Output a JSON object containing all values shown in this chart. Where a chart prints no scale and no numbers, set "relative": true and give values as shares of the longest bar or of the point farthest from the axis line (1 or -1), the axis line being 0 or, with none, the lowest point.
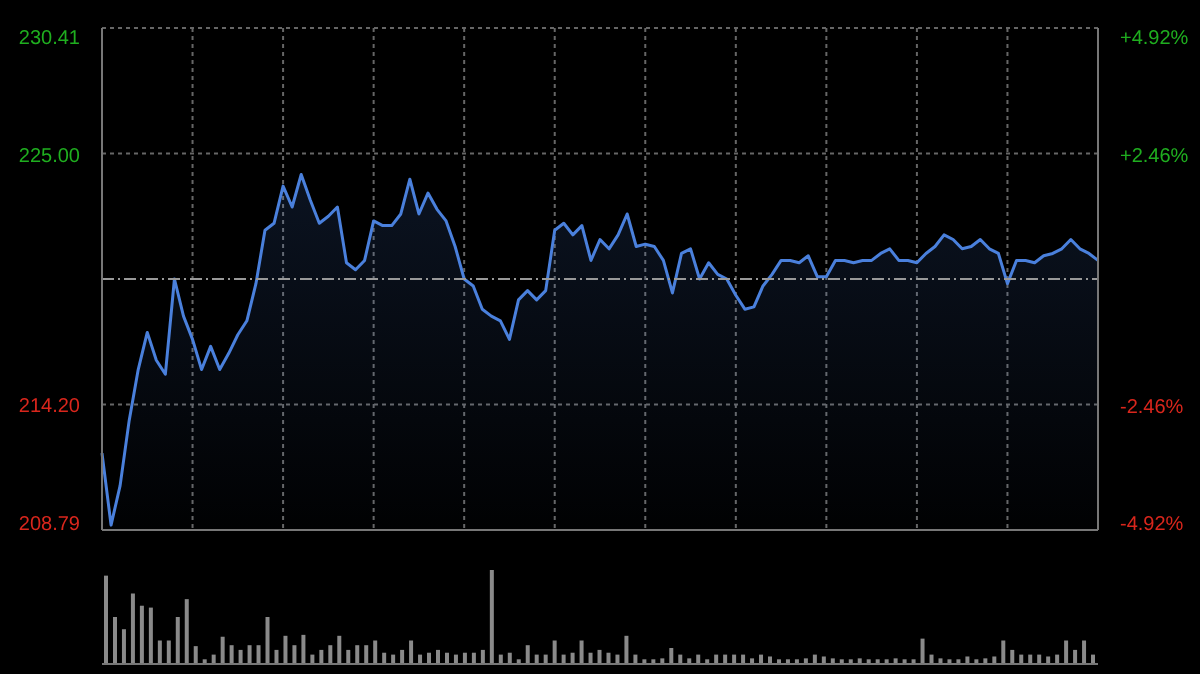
{
  "chart_data": [
    {
      "type": "area",
      "categories": [
        null,
        null,
        null,
        null,
        null,
        null,
        null,
        null,
        null,
        null,
        null,
        null,
        null,
        null,
        null,
        null,
        null,
        null,
        null,
        null,
        null,
        null,
        null,
        null,
        null,
        null,
        null,
        null,
        null,
        null,
        null,
        null,
        null,
        null,
        null,
        null,
        null,
        null,
        null,
        null,
        null,
        null,
        null,
        null,
        null,
        null,
        null,
        null,
        null,
        null,
        null,
        null,
        null,
        null,
        null,
        null,
        null,
        null,
        null,
        null,
        null,
        null,
        null,
        null,
        null,
        null,
        null,
        null,
        null,
        null,
        null,
        null,
        null,
        null,
        null,
        null,
        null,
        null,
        null,
        null,
        null,
        null,
        null,
        null,
        null,
        null,
        null,
        null,
        null,
        null,
        null,
        null,
        null,
        null,
        null,
        null,
        null,
        null,
        null,
        null,
        null,
        null,
        null,
        null,
        null,
        null,
        null,
        null,
        null,
        null,
        null
      ],
      "series": [
        {
          "color": "#4a80dc",
          "values": [
            212.1,
            209.0,
            210.7,
            213.5,
            215.7,
            217.3,
            216.1,
            215.5,
            219.6,
            218.0,
            217.0,
            215.7,
            216.7,
            215.7,
            216.4,
            217.2,
            217.8,
            219.4,
            221.7,
            222.0,
            223.6,
            222.7,
            224.1,
            223.0,
            222.0,
            222.3,
            222.7,
            220.3,
            220.0,
            220.4,
            222.1,
            221.9,
            221.9,
            222.4,
            223.9,
            222.4,
            223.3,
            222.6,
            222.1,
            221.0,
            219.6,
            219.3,
            218.3,
            218.0,
            217.8,
            217.0,
            218.7,
            219.1,
            218.7,
            219.1,
            221.7,
            222.0,
            221.5,
            221.9,
            220.4,
            221.3,
            220.9,
            221.5,
            222.4,
            221.0,
            221.1,
            221.0,
            220.4,
            219.0,
            220.7,
            220.9,
            219.6,
            220.3,
            219.8,
            219.6,
            218.9,
            218.3,
            218.4,
            219.3,
            219.8,
            220.4,
            220.4,
            220.3,
            220.6,
            219.7,
            219.7,
            220.4,
            220.4,
            220.3,
            220.4,
            220.4,
            220.7,
            220.9,
            220.4,
            220.4,
            220.3,
            220.7,
            221.0,
            221.5,
            221.3,
            220.9,
            221.0,
            221.3,
            220.9,
            220.7,
            219.4,
            220.4,
            220.4,
            220.3,
            220.6,
            220.7,
            220.9,
            221.3,
            220.9,
            220.7,
            220.4
          ]
        }
      ],
      "ylim": [
        208.79,
        230.41
      ],
      "yticks": [
        208.79,
        {
          "value": 214.2,
          "label": "214.20"
        },
        {
          "value": 225.0,
          "label": "225.00"
        },
        230.41
      ],
      "y2lim": [
        -4.92,
        4.92
      ],
      "y2ticks": [
        {
          "value": -4.92,
          "label": "-4.92%"
        },
        {
          "value": -2.46,
          "label": "-2.46%"
        },
        {
          "value": 2.46,
          "label": "+2.46%"
        },
        {
          "value": 4.92,
          "label": "+4.92%"
        }
      ],
      "ref_lines": [
        {
          "axis": "y",
          "value": 219.6
        }
      ],
      "grid": true,
      "legend": false,
      "marker": "none",
      "line_style": "solid",
      "tick_labels": "y"
    },
    {
      "type": "bar",
      "relative": true,
      "categories": [
        null,
        null,
        null,
        null,
        null,
        null,
        null,
        null,
        null,
        null,
        null,
        null,
        null,
        null,
        null,
        null,
        null,
        null,
        null,
        null,
        null,
        null,
        null,
        null,
        null,
        null,
        null,
        null,
        null,
        null,
        null,
        null,
        null,
        null,
        null,
        null,
        null,
        null,
        null,
        null,
        null,
        null,
        null,
        null,
        null,
        null,
        null,
        null,
        null,
        null,
        null,
        null,
        null,
        null,
        null,
        null,
        null,
        null,
        null,
        null,
        null,
        null,
        null,
        null,
        null,
        null,
        null,
        null,
        null,
        null,
        null,
        null,
        null,
        null,
        null,
        null,
        null,
        null,
        null,
        null,
        null,
        null,
        null,
        null,
        null,
        null,
        null,
        null,
        null,
        null,
        null,
        null,
        null,
        null,
        null,
        null,
        null,
        null,
        null,
        null,
        null,
        null,
        null,
        null,
        null,
        null,
        null,
        null,
        null,
        null,
        null
      ],
      "series": [
        {
          "color": "#8a8a8a",
          "values": [
            0.94,
            0.5,
            0.37,
            0.75,
            0.62,
            0.6,
            0.25,
            0.25,
            0.5,
            0.69,
            0.19,
            0.05,
            0.1,
            0.29,
            0.2,
            0.15,
            0.2,
            0.2,
            0.5,
            0.15,
            0.3,
            0.2,
            0.31,
            0.1,
            0.15,
            0.2,
            0.3,
            0.15,
            0.2,
            0.2,
            0.25,
            0.12,
            0.1,
            0.15,
            0.25,
            0.1,
            0.12,
            0.15,
            0.12,
            0.1,
            0.12,
            0.12,
            0.15,
            1.0,
            0.1,
            0.12,
            0.05,
            0.2,
            0.1,
            0.1,
            0.25,
            0.1,
            0.12,
            0.25,
            0.12,
            0.15,
            0.12,
            0.1,
            0.3,
            0.1,
            0.05,
            0.05,
            0.06,
            0.17,
            0.1,
            0.06,
            0.1,
            0.05,
            0.1,
            0.1,
            0.1,
            0.1,
            0.06,
            0.1,
            0.08,
            0.05,
            0.05,
            0.05,
            0.06,
            0.1,
            0.08,
            0.06,
            0.05,
            0.05,
            0.06,
            0.05,
            0.05,
            0.05,
            0.06,
            0.05,
            0.05,
            0.27,
            0.1,
            0.06,
            0.05,
            0.05,
            0.08,
            0.05,
            0.06,
            0.08,
            0.25,
            0.15,
            0.1,
            0.1,
            0.1,
            0.08,
            0.1,
            0.25,
            0.15,
            0.25,
            0.1
          ]
        }
      ],
      "legend": false,
      "tick_labels": false
    }
  ]
}
